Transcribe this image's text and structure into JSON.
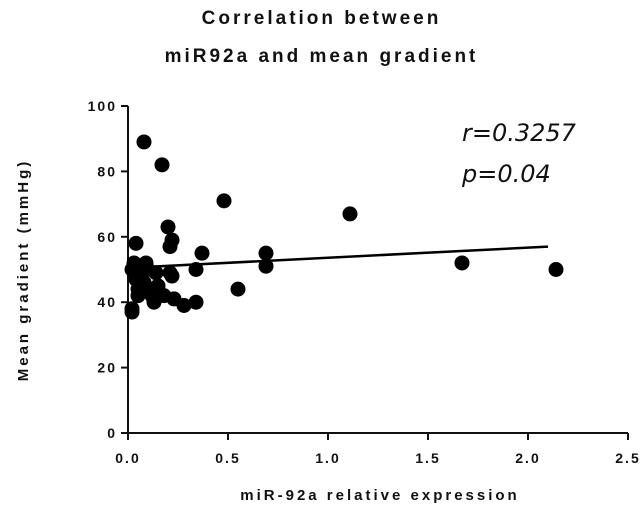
{
  "chart_data": {
    "type": "scatter",
    "title_line1": "Correlation between",
    "title_line2": "miR92a and mean gradient",
    "xlabel": "miR-92a relative expression",
    "ylabel": "Mean gradient (mmHg)",
    "xlim": [
      0,
      2.5
    ],
    "ylim": [
      0,
      100
    ],
    "x_ticks": [
      "0.0",
      "0.5",
      "1.0",
      "1.5",
      "2.0",
      "2.5"
    ],
    "y_ticks": [
      "0",
      "20",
      "40",
      "60",
      "80",
      "100"
    ],
    "grid": false,
    "annotations": {
      "r": "r=0.3257",
      "p": "p=0.04"
    },
    "regression": {
      "x": [
        0,
        2.1
      ],
      "y": [
        50.5,
        57
      ]
    },
    "points": [
      {
        "x": 0.02,
        "y": 37
      },
      {
        "x": 0.02,
        "y": 38
      },
      {
        "x": 0.02,
        "y": 50
      },
      {
        "x": 0.03,
        "y": 52
      },
      {
        "x": 0.04,
        "y": 58
      },
      {
        "x": 0.04,
        "y": 47
      },
      {
        "x": 0.05,
        "y": 44
      },
      {
        "x": 0.05,
        "y": 42
      },
      {
        "x": 0.06,
        "y": 48
      },
      {
        "x": 0.07,
        "y": 50
      },
      {
        "x": 0.08,
        "y": 46
      },
      {
        "x": 0.08,
        "y": 89
      },
      {
        "x": 0.09,
        "y": 52
      },
      {
        "x": 0.1,
        "y": 50
      },
      {
        "x": 0.11,
        "y": 44
      },
      {
        "x": 0.12,
        "y": 42
      },
      {
        "x": 0.13,
        "y": 40
      },
      {
        "x": 0.14,
        "y": 49
      },
      {
        "x": 0.15,
        "y": 45
      },
      {
        "x": 0.17,
        "y": 82
      },
      {
        "x": 0.18,
        "y": 42
      },
      {
        "x": 0.2,
        "y": 63
      },
      {
        "x": 0.21,
        "y": 57
      },
      {
        "x": 0.21,
        "y": 49
      },
      {
        "x": 0.22,
        "y": 59
      },
      {
        "x": 0.22,
        "y": 48
      },
      {
        "x": 0.23,
        "y": 41
      },
      {
        "x": 0.28,
        "y": 39
      },
      {
        "x": 0.34,
        "y": 40
      },
      {
        "x": 0.34,
        "y": 50
      },
      {
        "x": 0.37,
        "y": 55
      },
      {
        "x": 0.48,
        "y": 71
      },
      {
        "x": 0.55,
        "y": 44
      },
      {
        "x": 0.69,
        "y": 51
      },
      {
        "x": 0.69,
        "y": 55
      },
      {
        "x": 1.11,
        "y": 67
      },
      {
        "x": 1.67,
        "y": 52
      },
      {
        "x": 2.14,
        "y": 50
      }
    ]
  }
}
